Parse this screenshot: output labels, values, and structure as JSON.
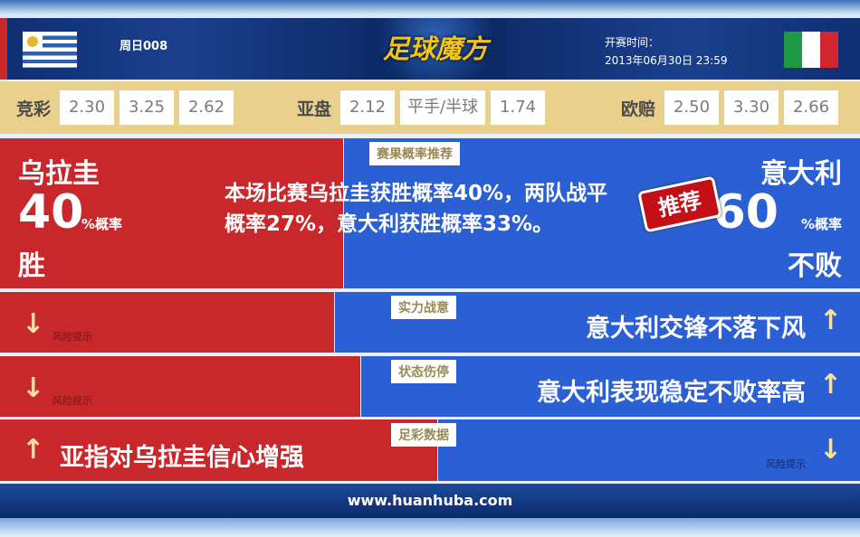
{
  "header": {
    "match_no": "周日008",
    "logo": "足球魔方",
    "time_label": "开赛时间：",
    "time_value": "2013年06月30日 23:59",
    "home_flag": "uruguay-flag",
    "away_flag": "italy-flag"
  },
  "odds": {
    "jingcai": {
      "label": "竞彩",
      "values": [
        "2.30",
        "3.25",
        "2.62"
      ]
    },
    "yapan": {
      "label": "亚盘",
      "values": [
        "2.12",
        "平手/半球",
        "1.74"
      ]
    },
    "oupei": {
      "label": "欧赔",
      "values": [
        "2.50",
        "3.30",
        "2.66"
      ]
    }
  },
  "prediction": {
    "tag": "赛果概率推荐",
    "home": {
      "team": "乌拉圭",
      "percent": "40",
      "unit": "%概率",
      "result": "胜"
    },
    "away": {
      "team": "意大利",
      "percent": "60",
      "unit": "%概率",
      "result": "不败"
    },
    "recommend": "推荐",
    "summary": "本场比赛乌拉圭获胜概率40%，两队战平概率27%，意大利获胜概率33%。"
  },
  "rows": [
    {
      "tag": "实力战意",
      "left_risk": "风险提示",
      "right_text": "意大利交锋不落下风"
    },
    {
      "tag": "状态伤停",
      "left_risk": "风险提示",
      "right_text": "意大利表现稳定不败率高"
    },
    {
      "tag": "足彩数据",
      "left_text": "亚指对乌拉圭信心增强",
      "right_risk": "风险提示"
    }
  ],
  "footer": {
    "url": "www.huanhuba.com"
  },
  "colors": {
    "home": "#c8272b",
    "away": "#2b60d4",
    "odds_bg": "#e9d08c"
  }
}
